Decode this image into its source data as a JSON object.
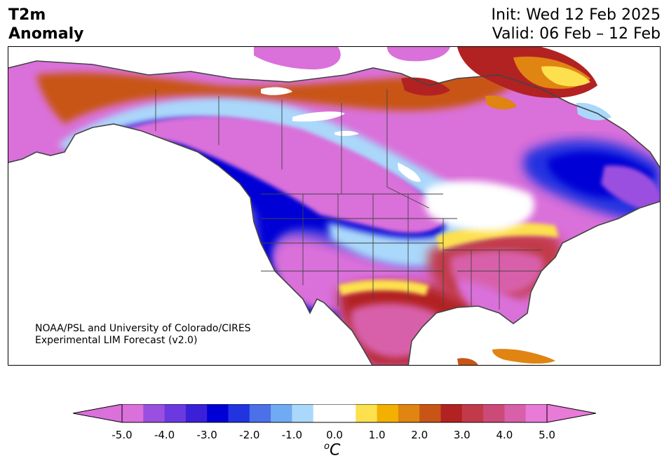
{
  "header": {
    "title_line1": "T2m",
    "title_line2": "Anomaly",
    "init_label": "Init: Wed 12 Feb 2025",
    "valid_label": "Valid: 06 Feb – 12 Feb"
  },
  "credit": {
    "line1": "NOAA/PSL and University of Colorado/CIRES",
    "line2": "Experimental LIM Forecast (v2.0)"
  },
  "colorbar": {
    "unit_base": "C",
    "unit_sup": "o",
    "ticks": [
      "-5.0",
      "-4.0",
      "-3.0",
      "-2.0",
      "-1.0",
      "0.0",
      "1.0",
      "2.0",
      "3.0",
      "4.0",
      "5.0"
    ],
    "colors": [
      "#da70da",
      "#9b4fe0",
      "#6a3ae0",
      "#3a20d8",
      "#0000d6",
      "#2233e0",
      "#4b70e8",
      "#70aaf2",
      "#aad8fa",
      "#ffffff",
      "#ffffff",
      "#fde04e",
      "#f2b000",
      "#e08412",
      "#c85516",
      "#b22222",
      "#c23a4a",
      "#cc4a78",
      "#d860aa",
      "#e87ad8"
    ],
    "under_color": "#da70da",
    "over_color": "#e87ad8",
    "range": [
      -5.0,
      5.0
    ],
    "interval": 0.5
  },
  "map_regions": {
    "west_canada_alaska_cold": "#da70da",
    "central_us_cold_core": "#0000d6",
    "northeast_canada_cold_core": "#0000d6",
    "texas_warm_core": "#d860aa",
    "southeast_us_warm": "#cc4a78",
    "greenland_warm": "#b22222"
  }
}
